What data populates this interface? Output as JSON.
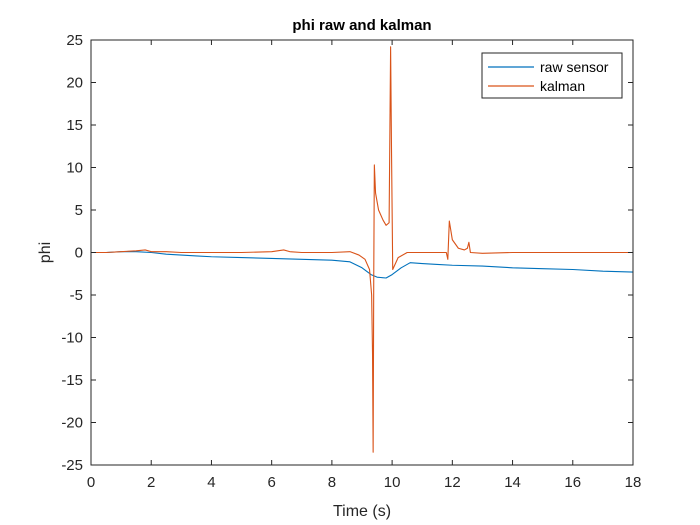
{
  "chart_data": {
    "type": "line",
    "title": "phi raw and kalman",
    "xlabel": "Time (s)",
    "ylabel": "phi",
    "xlim": [
      0,
      18
    ],
    "ylim": [
      -25,
      25
    ],
    "xticks": [
      0,
      2,
      4,
      6,
      8,
      10,
      12,
      14,
      16,
      18
    ],
    "yticks": [
      -25,
      -20,
      -15,
      -10,
      -5,
      0,
      5,
      10,
      15,
      20,
      25
    ],
    "grid": false,
    "legend_position": "top-right",
    "series": [
      {
        "name": "raw sensor",
        "color": "#0072BD",
        "points": [
          [
            0,
            0.0
          ],
          [
            0.5,
            0.0
          ],
          [
            1.0,
            0.1
          ],
          [
            1.5,
            0.1
          ],
          [
            2.0,
            0.0
          ],
          [
            2.5,
            -0.2
          ],
          [
            3.0,
            -0.3
          ],
          [
            3.5,
            -0.4
          ],
          [
            4.0,
            -0.5
          ],
          [
            5.0,
            -0.6
          ],
          [
            6.0,
            -0.7
          ],
          [
            7.0,
            -0.8
          ],
          [
            8.0,
            -0.9
          ],
          [
            8.6,
            -1.1
          ],
          [
            9.0,
            -1.8
          ],
          [
            9.3,
            -2.6
          ],
          [
            9.5,
            -2.9
          ],
          [
            9.8,
            -3.0
          ],
          [
            10.0,
            -2.6
          ],
          [
            10.3,
            -1.8
          ],
          [
            10.6,
            -1.2
          ],
          [
            11.0,
            -1.3
          ],
          [
            11.5,
            -1.4
          ],
          [
            12.0,
            -1.5
          ],
          [
            13.0,
            -1.6
          ],
          [
            14.0,
            -1.8
          ],
          [
            15.0,
            -1.9
          ],
          [
            16.0,
            -2.0
          ],
          [
            17.0,
            -2.2
          ],
          [
            18.0,
            -2.3
          ]
        ]
      },
      {
        "name": "kalman",
        "color": "#D95319",
        "points": [
          [
            0,
            0.0
          ],
          [
            0.5,
            0.0
          ],
          [
            1.0,
            0.1
          ],
          [
            1.5,
            0.2
          ],
          [
            1.8,
            0.3
          ],
          [
            2.0,
            0.1
          ],
          [
            2.5,
            0.1
          ],
          [
            3.0,
            0.0
          ],
          [
            4.0,
            0.0
          ],
          [
            5.0,
            0.0
          ],
          [
            6.0,
            0.1
          ],
          [
            6.4,
            0.3
          ],
          [
            6.6,
            0.1
          ],
          [
            7.0,
            0.0
          ],
          [
            8.0,
            0.0
          ],
          [
            8.6,
            0.1
          ],
          [
            8.9,
            -0.3
          ],
          [
            9.1,
            -0.8
          ],
          [
            9.25,
            -2.0
          ],
          [
            9.32,
            -5.0
          ],
          [
            9.35,
            -12.0
          ],
          [
            9.37,
            -23.5
          ],
          [
            9.39,
            -3.0
          ],
          [
            9.41,
            10.3
          ],
          [
            9.45,
            7.0
          ],
          [
            9.55,
            5.0
          ],
          [
            9.7,
            3.8
          ],
          [
            9.8,
            3.2
          ],
          [
            9.9,
            3.5
          ],
          [
            9.95,
            24.2
          ],
          [
            9.98,
            12.0
          ],
          [
            10.02,
            -2.0
          ],
          [
            10.2,
            -0.6
          ],
          [
            10.5,
            0.0
          ],
          [
            11.0,
            0.0
          ],
          [
            11.5,
            0.0
          ],
          [
            11.8,
            0.0
          ],
          [
            11.85,
            -0.8
          ],
          [
            11.9,
            3.7
          ],
          [
            12.0,
            1.5
          ],
          [
            12.2,
            0.5
          ],
          [
            12.4,
            0.3
          ],
          [
            12.5,
            0.5
          ],
          [
            12.55,
            1.2
          ],
          [
            12.6,
            0.0
          ],
          [
            13.0,
            -0.1
          ],
          [
            14.0,
            0.0
          ],
          [
            15.0,
            0.0
          ],
          [
            16.0,
            0.0
          ],
          [
            17.0,
            0.0
          ],
          [
            18.0,
            0.0
          ]
        ]
      }
    ]
  }
}
